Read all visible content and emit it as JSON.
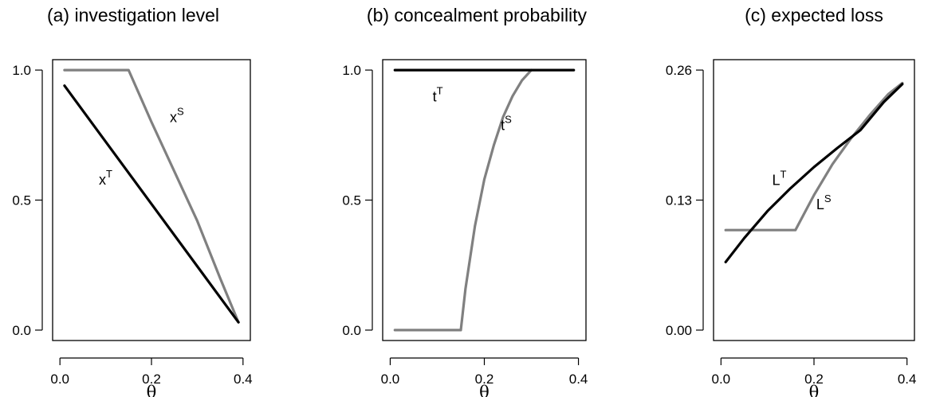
{
  "chart_data": [
    {
      "type": "line",
      "title": "(a) investigation level",
      "xlabel": "θ",
      "ylabel": "",
      "xlim": [
        0.0,
        0.4
      ],
      "ylim": [
        0.0,
        1.0
      ],
      "xticks": [
        "0.0",
        "0.2",
        "0.4"
      ],
      "yticks": [
        "0.0",
        "0.5",
        "1.0"
      ],
      "grid": false,
      "series": [
        {
          "name": "x^S",
          "color": "#808080",
          "x": [
            0.01,
            0.15,
            0.2,
            0.3,
            0.35,
            0.39
          ],
          "y": [
            1.0,
            1.0,
            0.8,
            0.42,
            0.2,
            0.03
          ]
        },
        {
          "name": "x^T",
          "color": "#000000",
          "x": [
            0.01,
            0.39
          ],
          "y": [
            0.94,
            0.03
          ]
        }
      ],
      "annotations": [
        {
          "base": "x",
          "sup": "S",
          "x": 0.24,
          "y": 0.8
        },
        {
          "base": "x",
          "sup": "T",
          "x": 0.085,
          "y": 0.56
        }
      ]
    },
    {
      "type": "line",
      "title": "(b) concealment probability",
      "xlabel": "θ",
      "ylabel": "",
      "xlim": [
        0.0,
        0.4
      ],
      "ylim": [
        0.0,
        1.0
      ],
      "xticks": [
        "0.0",
        "0.2",
        "0.4"
      ],
      "yticks": [
        "0.0",
        "0.5",
        "1.0"
      ],
      "grid": false,
      "series": [
        {
          "name": "t^S",
          "color": "#808080",
          "x": [
            0.01,
            0.15,
            0.16,
            0.18,
            0.2,
            0.22,
            0.24,
            0.26,
            0.28,
            0.3
          ],
          "y": [
            0.0,
            0.0,
            0.16,
            0.4,
            0.58,
            0.71,
            0.82,
            0.9,
            0.96,
            1.0
          ]
        },
        {
          "name": "t^T",
          "color": "#000000",
          "x": [
            0.01,
            0.39
          ],
          "y": [
            1.0,
            1.0
          ]
        }
      ],
      "annotations": [
        {
          "base": "t",
          "sup": "T",
          "x": 0.09,
          "y": 0.88
        },
        {
          "base": "t",
          "sup": "S",
          "x": 0.235,
          "y": 0.77
        }
      ]
    },
    {
      "type": "line",
      "title": "(c) expected loss",
      "xlabel": "θ",
      "ylabel": "",
      "xlim": [
        0.0,
        0.4
      ],
      "ylim": [
        0.0,
        0.26
      ],
      "xticks": [
        "0.0",
        "0.2",
        "0.4"
      ],
      "yticks": [
        "0.00",
        "0.13",
        "0.26"
      ],
      "grid": false,
      "series": [
        {
          "name": "L^S",
          "color": "#808080",
          "x": [
            0.01,
            0.16,
            0.2,
            0.24,
            0.28,
            0.32,
            0.36,
            0.39
          ],
          "y": [
            0.1,
            0.1,
            0.135,
            0.166,
            0.192,
            0.215,
            0.236,
            0.247
          ]
        },
        {
          "name": "L^T",
          "color": "#000000",
          "x": [
            0.01,
            0.05,
            0.1,
            0.15,
            0.2,
            0.25,
            0.3,
            0.35,
            0.39
          ],
          "y": [
            0.068,
            0.092,
            0.119,
            0.142,
            0.163,
            0.182,
            0.2,
            0.228,
            0.246
          ]
        }
      ],
      "annotations": [
        {
          "base": "L",
          "sup": "T",
          "x": 0.11,
          "y": 0.145
        },
        {
          "base": "L",
          "sup": "S",
          "x": 0.205,
          "y": 0.121
        }
      ]
    }
  ]
}
